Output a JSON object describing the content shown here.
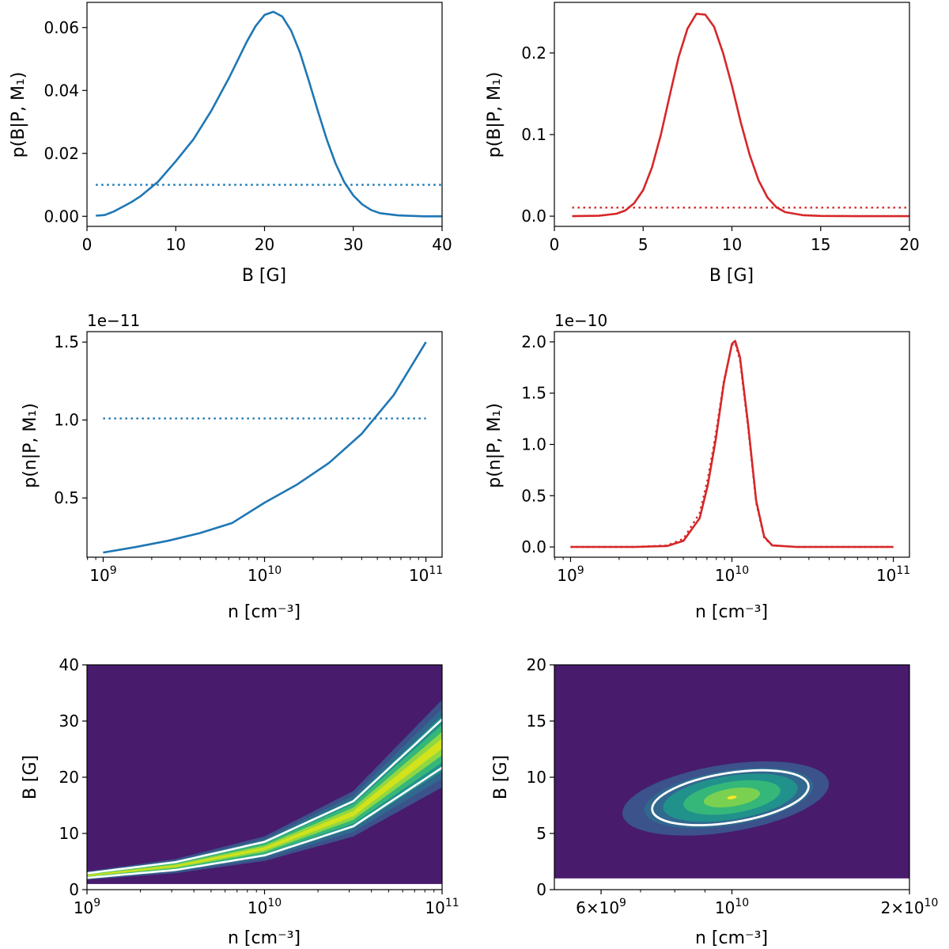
{
  "chart_data": [
    {
      "id": "b-wide",
      "type": "line",
      "xlabel": "B [G]",
      "ylabel": "p(B|P, M₁)",
      "xlim": [
        0,
        40
      ],
      "ylim": [
        -0.0032,
        0.068
      ],
      "xscale": "linear",
      "xticks": [
        0,
        10,
        20,
        30,
        40
      ],
      "xticklabels": [
        "0",
        "10",
        "20",
        "30",
        "40"
      ],
      "yticks": [
        0.0,
        0.02,
        0.04,
        0.06
      ],
      "yticklabels": [
        "0.00",
        "0.02",
        "0.04",
        "0.06"
      ],
      "color": "#1f77b4",
      "series": [
        {
          "style": "solid",
          "points": [
            [
              1,
              0.0002
            ],
            [
              2,
              0.0004
            ],
            [
              3,
              0.0015
            ],
            [
              4,
              0.003
            ],
            [
              5,
              0.0045
            ],
            [
              6,
              0.0063
            ],
            [
              8,
              0.011
            ],
            [
              10,
              0.0175
            ],
            [
              12,
              0.0245
            ],
            [
              14,
              0.0335
            ],
            [
              16,
              0.044
            ],
            [
              18,
              0.0555
            ],
            [
              19,
              0.0605
            ],
            [
              20,
              0.064
            ],
            [
              21,
              0.065
            ],
            [
              22,
              0.0635
            ],
            [
              23,
              0.059
            ],
            [
              24,
              0.052
            ],
            [
              25,
              0.043
            ],
            [
              26,
              0.0335
            ],
            [
              27,
              0.0245
            ],
            [
              28,
              0.0168
            ],
            [
              29,
              0.0108
            ],
            [
              30,
              0.0066
            ],
            [
              31,
              0.0038
            ],
            [
              32,
              0.002
            ],
            [
              33,
              0.001
            ],
            [
              35,
              0.0003
            ],
            [
              38,
              0.0
            ],
            [
              40,
              0.0
            ]
          ]
        },
        {
          "style": "dotted",
          "points": [
            [
              1,
              0.01
            ],
            [
              40,
              0.01
            ]
          ]
        }
      ]
    },
    {
      "id": "b-narrow",
      "type": "line",
      "xlabel": "B [G]",
      "ylabel": "p(B|P, M₁)",
      "xlim": [
        0,
        20
      ],
      "ylim": [
        -0.0125,
        0.262
      ],
      "xscale": "linear",
      "xticks": [
        0,
        5,
        10,
        15,
        20
      ],
      "xticklabels": [
        "0",
        "5",
        "10",
        "15",
        "20"
      ],
      "yticks": [
        0.0,
        0.1,
        0.2
      ],
      "yticklabels": [
        "0.0",
        "0.1",
        "0.2"
      ],
      "color": "#d62728",
      "series": [
        {
          "style": "solid",
          "points": [
            [
              1,
              0.0
            ],
            [
              2.5,
              0.0005
            ],
            [
              3.5,
              0.003
            ],
            [
              4,
              0.007
            ],
            [
              4.5,
              0.016
            ],
            [
              5,
              0.032
            ],
            [
              5.5,
              0.06
            ],
            [
              6,
              0.1
            ],
            [
              6.5,
              0.148
            ],
            [
              7,
              0.195
            ],
            [
              7.5,
              0.23
            ],
            [
              8,
              0.248
            ],
            [
              8.5,
              0.247
            ],
            [
              9,
              0.232
            ],
            [
              9.5,
              0.2
            ],
            [
              10,
              0.16
            ],
            [
              10.5,
              0.115
            ],
            [
              11,
              0.075
            ],
            [
              11.5,
              0.044
            ],
            [
              12,
              0.023
            ],
            [
              12.5,
              0.011
            ],
            [
              13,
              0.005
            ],
            [
              14,
              0.0012
            ],
            [
              15,
              0.0003
            ],
            [
              17,
              0.0
            ],
            [
              20,
              0.0
            ]
          ]
        },
        {
          "style": "dotted",
          "points": [
            [
              1,
              0.0105
            ],
            [
              20,
              0.0105
            ]
          ]
        }
      ]
    },
    {
      "id": "n-wide",
      "type": "line",
      "xlabel": "n [cm⁻³]",
      "ylabel": "p(n|P, M₁)",
      "xlim": [
        794000000.0,
        125900000000.0
      ],
      "ylim": [
        1.2e-12,
        1.567e-11
      ],
      "xscale": "log",
      "sci_label": "1e−11",
      "xticks": [
        1000000000.0,
        10000000000.0,
        100000000000.0
      ],
      "xticklabels": [
        "10^9",
        "10^10",
        "10^11"
      ],
      "yticks": [
        5e-12,
        1e-11,
        1.5e-11
      ],
      "yticklabels": [
        "0.5",
        "1.0",
        "1.5"
      ],
      "color": "#1f77b4",
      "series": [
        {
          "style": "solid",
          "points": [
            [
              1000000000.0,
              1.5e-12
            ],
            [
              1585000000.0,
              1.85e-12
            ],
            [
              2512000000.0,
              2.25e-12
            ],
            [
              3981000000.0,
              2.75e-12
            ],
            [
              6310000000.0,
              3.4e-12
            ],
            [
              10000000000.0,
              4.7e-12
            ],
            [
              15850000000.0,
              5.85e-12
            ],
            [
              25120000000.0,
              7.25e-12
            ],
            [
              39810000000.0,
              9.1e-12
            ],
            [
              63100000000.0,
              1.16e-11
            ],
            [
              100000000000.0,
              1.5e-11
            ]
          ]
        },
        {
          "style": "dotted",
          "points": [
            [
              1000000000.0,
              1.01e-11
            ],
            [
              100000000000.0,
              1.01e-11
            ]
          ]
        }
      ]
    },
    {
      "id": "n-narrow",
      "type": "line",
      "xlabel": "n [cm⁻³]",
      "ylabel": "p(n|P, M₁)",
      "xlim": [
        794000000.0,
        125900000000.0
      ],
      "ylim": [
        -1e-11,
        2.1e-10
      ],
      "xscale": "log",
      "sci_label": "1e−10",
      "xticks": [
        1000000000.0,
        10000000000.0,
        100000000000.0
      ],
      "xticklabels": [
        "10^9",
        "10^10",
        "10^11"
      ],
      "yticks": [
        0,
        5e-11,
        1e-10,
        1.5e-10,
        2e-10
      ],
      "yticklabels": [
        "0.0",
        "0.5",
        "1.0",
        "1.5",
        "2.0"
      ],
      "color": "#d62728",
      "series": [
        {
          "style": "solid",
          "points": [
            [
              1000000000.0,
              0
            ],
            [
              2512000000.0,
              0
            ],
            [
              3981000000.0,
              1e-12
            ],
            [
              5012000000.0,
              6e-12
            ],
            [
              6310000000.0,
              2.8e-11
            ],
            [
              7079000000.0,
              6e-11
            ],
            [
              7943000000.0,
              1.05e-10
            ],
            [
              8913000000.0,
              1.6e-10
            ],
            [
              10000000000.0,
              1.98e-10
            ],
            [
              10470000000.0,
              2.01e-10
            ],
            [
              11220000000.0,
              1.85e-10
            ],
            [
              12590000000.0,
              1.2e-10
            ],
            [
              14130000000.0,
              4.5e-11
            ],
            [
              15850000000.0,
              1e-11
            ],
            [
              17780000000.0,
              1.5e-12
            ],
            [
              25120000000.0,
              0
            ],
            [
              100000000000.0,
              0
            ]
          ]
        },
        {
          "style": "dotted",
          "points": [
            [
              1000000000.0,
              0
            ],
            [
              2512000000.0,
              0
            ],
            [
              3981000000.0,
              1.5e-12
            ],
            [
              5012000000.0,
              8e-12
            ],
            [
              6310000000.0,
              3.3e-11
            ],
            [
              7079000000.0,
              6.6e-11
            ],
            [
              7943000000.0,
              1.1e-10
            ],
            [
              8913000000.0,
              1.62e-10
            ],
            [
              10000000000.0,
              1.97e-10
            ],
            [
              10470000000.0,
              1.99e-10
            ],
            [
              11220000000.0,
              1.82e-10
            ],
            [
              12590000000.0,
              1.17e-10
            ],
            [
              14130000000.0,
              4.3e-11
            ],
            [
              15850000000.0,
              9e-12
            ],
            [
              17780000000.0,
              1.5e-12
            ],
            [
              25120000000.0,
              0
            ],
            [
              100000000000.0,
              0
            ]
          ]
        }
      ]
    },
    {
      "id": "nb-wide",
      "type": "heatmap",
      "xlabel": "n [cm⁻³]",
      "ylabel": "B [G]",
      "xlim": [
        1000000000.0,
        100000000000.0
      ],
      "ylim": [
        0,
        40
      ],
      "xscale": "log",
      "xticks": [
        1000000000.0,
        10000000000.0,
        100000000000.0
      ],
      "xticklabels": [
        "10^9",
        "10^10",
        "10^11"
      ],
      "yticks": [
        0,
        10,
        20,
        30,
        40
      ],
      "yticklabels": [
        "0",
        "10",
        "20",
        "30",
        "40"
      ],
      "background": "#481b6d",
      "ridge": [
        [
          1000000000.0,
          2.5
        ],
        [
          3160000000.0,
          4.2
        ],
        [
          10000000000.0,
          7.3
        ],
        [
          31600000000.0,
          13.5
        ],
        [
          100000000000.0,
          26
        ]
      ],
      "contour_line": "#ffffff"
    },
    {
      "id": "nb-narrow",
      "type": "heatmap",
      "xlabel": "n [cm⁻³]",
      "ylabel": "B [G]",
      "xlim": [
        5000000000.0,
        20000000000.0
      ],
      "ylim": [
        0,
        20
      ],
      "xscale": "log",
      "xticks": [
        6000000000.0,
        10000000000.0,
        20000000000.0
      ],
      "xticklabels": [
        "6×10^9",
        "10^10",
        "2×10^10"
      ],
      "yticks": [
        0,
        5,
        10,
        15,
        20
      ],
      "yticklabels": [
        "0",
        "5",
        "10",
        "15",
        "20"
      ],
      "background": "#481b6d",
      "peak": [
        10000000000.0,
        8.2
      ],
      "contour_line": "#ffffff"
    }
  ]
}
